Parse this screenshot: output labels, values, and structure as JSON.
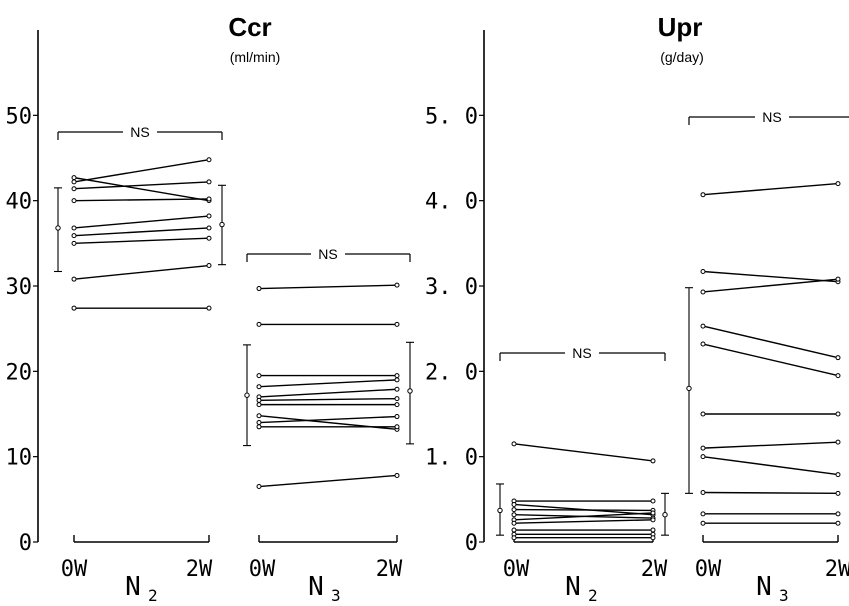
{
  "chart_data": [
    {
      "type": "line",
      "title": "Ccr",
      "unit_label": "(ml/min)",
      "ylim": [
        0,
        60
      ],
      "yticks": [
        "0",
        "10",
        "20",
        "30",
        "40",
        "50"
      ],
      "ytick_values": [
        0,
        10,
        20,
        30,
        40,
        50
      ],
      "groups": [
        {
          "label": "N",
          "subscript": "2",
          "x": [
            "0W",
            "2W"
          ],
          "comparison": "NS",
          "summary_0w": {
            "mean": 36.8,
            "low": 31.7,
            "high": 41.5
          },
          "summary_2w": {
            "mean": 37.2,
            "low": 32.5,
            "high": 41.8
          },
          "series": [
            {
              "values": [
                42.7,
                40.0
              ]
            },
            {
              "values": [
                42.2,
                44.8
              ]
            },
            {
              "values": [
                41.4,
                42.2
              ]
            },
            {
              "values": [
                40.0,
                40.2
              ]
            },
            {
              "values": [
                36.8,
                38.2
              ]
            },
            {
              "values": [
                35.9,
                36.8
              ]
            },
            {
              "values": [
                35.0,
                35.6
              ]
            },
            {
              "values": [
                30.8,
                32.4
              ]
            },
            {
              "values": [
                27.4,
                27.4
              ]
            }
          ]
        },
        {
          "label": "N",
          "subscript": "3",
          "x": [
            "0W",
            "2W"
          ],
          "comparison": "NS",
          "summary_0w": {
            "mean": 17.2,
            "low": 11.3,
            "high": 23.1
          },
          "summary_2w": {
            "mean": 17.7,
            "low": 11.5,
            "high": 23.4
          },
          "series": [
            {
              "values": [
                29.7,
                30.1
              ]
            },
            {
              "values": [
                25.5,
                25.5
              ]
            },
            {
              "values": [
                19.5,
                19.5
              ]
            },
            {
              "values": [
                18.2,
                19.0
              ]
            },
            {
              "values": [
                17.0,
                17.9
              ]
            },
            {
              "values": [
                16.6,
                16.8
              ]
            },
            {
              "values": [
                16.1,
                16.1
              ]
            },
            {
              "values": [
                14.8,
                13.2
              ]
            },
            {
              "values": [
                14.0,
                14.7
              ]
            },
            {
              "values": [
                13.5,
                13.5
              ]
            },
            {
              "values": [
                6.5,
                7.8
              ]
            }
          ]
        }
      ]
    },
    {
      "type": "line",
      "title": "Upr",
      "unit_label": "(g/day)",
      "ylim": [
        0,
        6
      ],
      "yticks": [
        "0",
        "1. 0",
        "2. 0",
        "3. 0",
        "4. 0",
        "5. 0"
      ],
      "ytick_values": [
        0,
        1,
        2,
        3,
        4,
        5
      ],
      "groups": [
        {
          "label": "N",
          "subscript": "2",
          "x": [
            "0W",
            "2W"
          ],
          "comparison": "NS",
          "summary_0w": {
            "mean": 0.37,
            "low": 0.08,
            "high": 0.68
          },
          "summary_2w": {
            "mean": 0.32,
            "low": 0.08,
            "high": 0.57
          },
          "series": [
            {
              "values": [
                1.15,
                0.95
              ]
            },
            {
              "values": [
                0.48,
                0.48
              ]
            },
            {
              "values": [
                0.44,
                0.32
              ]
            },
            {
              "values": [
                0.38,
                0.37
              ]
            },
            {
              "values": [
                0.32,
                0.28
              ]
            },
            {
              "values": [
                0.26,
                0.34
              ]
            },
            {
              "values": [
                0.22,
                0.26
              ]
            },
            {
              "values": [
                0.14,
                0.14
              ]
            },
            {
              "values": [
                0.09,
                0.09
              ]
            },
            {
              "values": [
                0.05,
                0.05
              ]
            }
          ]
        },
        {
          "label": "N",
          "subscript": "3",
          "x": [
            "0W",
            "2W"
          ],
          "comparison": "NS",
          "summary_0w": {
            "mean": 1.8,
            "low": 0.57,
            "high": 2.98
          },
          "summary_2w": {},
          "series": [
            {
              "values": [
                4.07,
                4.2
              ]
            },
            {
              "values": [
                3.17,
                3.05
              ]
            },
            {
              "values": [
                2.93,
                3.08
              ]
            },
            {
              "values": [
                2.53,
                2.16
              ]
            },
            {
              "values": [
                2.32,
                1.95
              ]
            },
            {
              "values": [
                1.5,
                1.5
              ]
            },
            {
              "values": [
                1.1,
                1.17
              ]
            },
            {
              "values": [
                1.0,
                0.79
              ]
            },
            {
              "values": [
                0.58,
                0.57
              ]
            },
            {
              "values": [
                0.33,
                0.33
              ]
            },
            {
              "values": [
                0.22,
                0.22
              ]
            }
          ]
        }
      ]
    }
  ]
}
